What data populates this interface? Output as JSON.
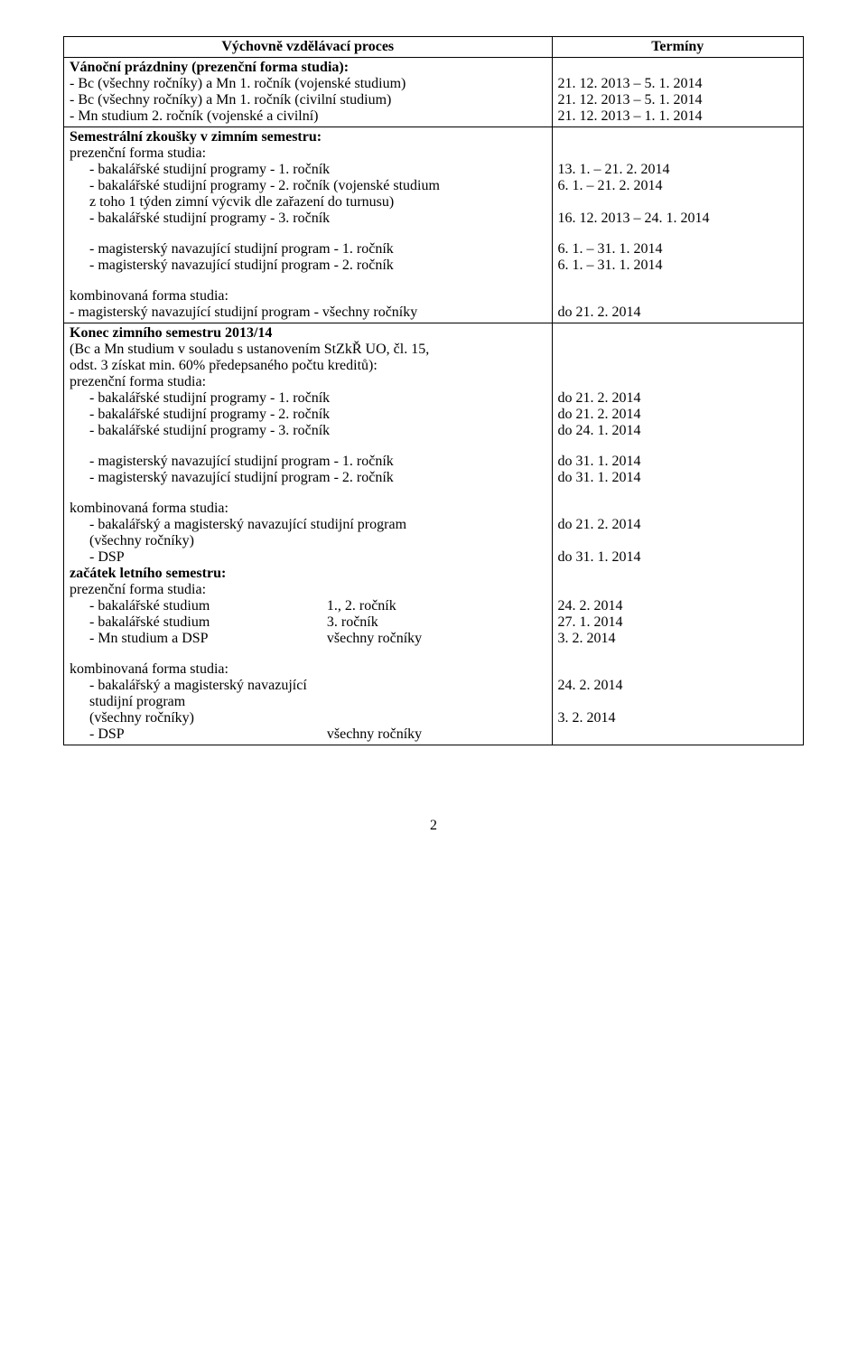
{
  "header": {
    "left": "Výchovně vzdělávací proces",
    "right": "Termíny"
  },
  "cell1": {
    "title": "Vánoční prázdniny (prezenční forma studia):",
    "rows": [
      {
        "label": "- Bc (všechny ročníky) a Mn 1. ročník (vojenské studium)",
        "date": "21. 12. 2013 – 5. 1. 2014"
      },
      {
        "label": "- Bc (všechny ročníky) a Mn 1. ročník (civilní studium)",
        "date": "21. 12. 2013 – 5. 1. 2014"
      },
      {
        "label": "- Mn studium 2. ročník (vojenské a civilní)",
        "date": "21. 12. 2013 – 1. 1. 2014"
      }
    ]
  },
  "cell2": {
    "title": "Semestrální zkoušky v zimním semestru:",
    "sub1": "prezenční forma studia:",
    "rows1": [
      {
        "label": "- bakalářské studijní programy - 1. ročník",
        "date": "13. 1. – 21. 2. 2014"
      },
      {
        "label": "- bakalářské studijní programy - 2. ročník (vojenské studium",
        "date": " 6. 1. – 21. 2. 2014"
      },
      {
        "label": "   z toho 1 týden zimní výcvik dle zařazení do turnusu)",
        "date": ""
      },
      {
        "label": "- bakalářské studijní programy - 3. ročník",
        "date": "16. 12. 2013 – 24. 1. 2014"
      }
    ],
    "rows2": [
      {
        "label": "- magisterský navazující studijní program - 1. ročník",
        "date": " 6. 1. – 31. 1. 2014"
      },
      {
        "label": "- magisterský navazující studijní program - 2. ročník",
        "date": " 6. 1. – 31. 1. 2014"
      }
    ],
    "sub2": "kombinovaná forma studia:",
    "rows3": [
      {
        "label": "- magisterský navazující studijní program - všechny ročníky",
        "date": "do 21. 2. 2014"
      }
    ]
  },
  "cell3": {
    "title": "Konec zimního semestru 2013/14",
    "lineA": "(Bc a Mn studium v souladu s ustanovením StZkŘ UO, čl. 15,",
    "lineB": "odst. 3 získat min. 60% předepsaného počtu kreditů):",
    "sub1": "prezenční forma studia:",
    "rows1": [
      {
        "label": "- bakalářské studijní programy - 1. ročník",
        "date": "do 21. 2. 2014"
      },
      {
        "label": "- bakalářské studijní programy - 2. ročník",
        "date": "do 21. 2. 2014"
      },
      {
        "label": "- bakalářské studijní programy - 3. ročník",
        "date": "do 24. 1. 2014"
      }
    ],
    "rows2": [
      {
        "label": "- magisterský navazující studijní program - 1. ročník",
        "date": "do  31. 1. 2014"
      },
      {
        "label": "- magisterský navazující studijní program - 2. ročník",
        "date": "do  31. 1. 2014"
      }
    ],
    "sub2": "kombinovaná forma studia:",
    "rows3": [
      {
        "label": "- bakalářský a magisterský navazující studijní program",
        "date": "do 21. 2. 2014"
      },
      {
        "label": "   (všechny ročníky)",
        "date": ""
      },
      {
        "label": "-   DSP",
        "date": "do 31. 1. 2014"
      }
    ],
    "title2": "začátek letního semestru:",
    "sub3": "prezenční forma studia:",
    "rows4": [
      {
        "a": "- bakalářské studium",
        "b": "1., 2. ročník",
        "date": "24. 2. 2014"
      },
      {
        "a": "- bakalářské studium",
        "b": "3. ročník",
        "date": "27. 1. 2014"
      },
      {
        "a": "- Mn studium a DSP",
        "b": "všechny ročníky",
        "date": "  3. 2. 2014"
      }
    ],
    "sub4": "kombinovaná forma studia:",
    "rows5": [
      {
        "a": "- bakalářský a magisterský navazující studijní program",
        "b": "",
        "date": "24. 2. 2014"
      },
      {
        "a": "   (všechny ročníky)",
        "b": "",
        "date": ""
      },
      {
        "a": "- DSP",
        "b": "všechny ročníky",
        "date": "  3. 2. 2014"
      }
    ]
  },
  "pageNumber": "2"
}
